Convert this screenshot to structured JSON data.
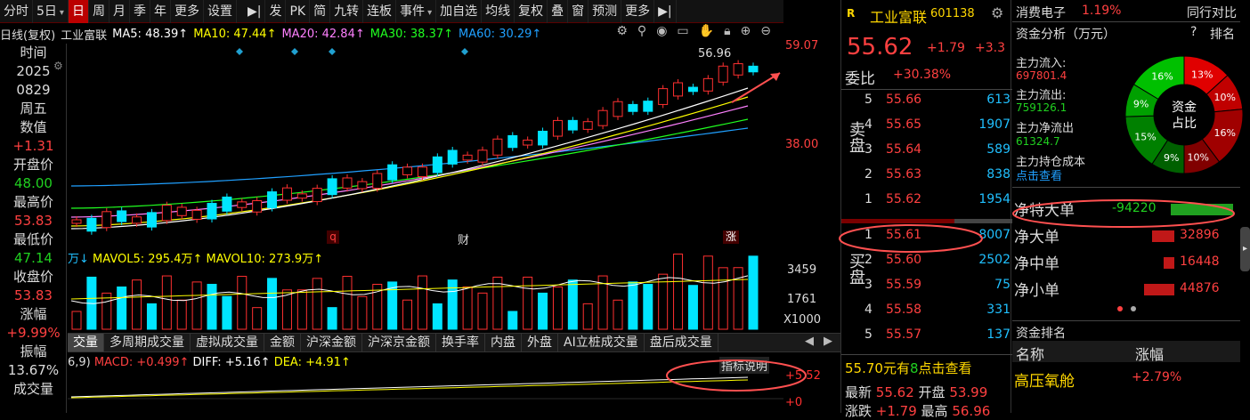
{
  "toolbar": {
    "left_items": [
      "分时",
      "5日"
    ],
    "period_items": [
      "日",
      "周",
      "月",
      "季",
      "年",
      "更多",
      "设置"
    ],
    "active": "日",
    "tool_items": [
      "发",
      "PK",
      "简",
      "九转",
      "连板",
      "事件"
    ],
    "right_items": [
      "加自选",
      "均线",
      "复权",
      "叠",
      "窗",
      "预测",
      "更多"
    ]
  },
  "chart_header": {
    "type": "日线(复权)",
    "name": "工业富联",
    "ma5": "MA5: 48.39↑",
    "ma10": "MA10: 47.44↑",
    "ma20": "MA20: 42.84↑",
    "ma30": "MA30: 38.37↑",
    "ma60": "MA60: 30.29↑"
  },
  "colors": {
    "up": "#ff3030",
    "down": "#00e5ff",
    "ma5": "#ffffff",
    "ma10": "#ffff00",
    "ma20": "#ff80ff",
    "ma30": "#20ff20",
    "ma60": "#20a0ff"
  },
  "left_info": [
    {
      "text": "时间",
      "c": "lbl"
    },
    {
      "text": "2025",
      "c": "w"
    },
    {
      "text": "0829",
      "c": "w"
    },
    {
      "text": "周五",
      "c": "w"
    },
    {
      "text": "数值",
      "c": "lbl"
    },
    {
      "text": "+1.31",
      "c": "r"
    },
    {
      "text": "开盘价",
      "c": "lbl"
    },
    {
      "text": "48.00",
      "c": "g"
    },
    {
      "text": "最高价",
      "c": "lbl"
    },
    {
      "text": "53.83",
      "c": "r"
    },
    {
      "text": "最低价",
      "c": "lbl"
    },
    {
      "text": "47.14",
      "c": "g"
    },
    {
      "text": "收盘价",
      "c": "lbl"
    },
    {
      "text": "53.83",
      "c": "r"
    },
    {
      "text": "涨幅",
      "c": "lbl"
    },
    {
      "text": "+9.99%",
      "c": "r"
    },
    {
      "text": "振幅",
      "c": "lbl"
    },
    {
      "text": "13.67%",
      "c": "w"
    },
    {
      "text": "成交量",
      "c": "lbl"
    }
  ],
  "main_axis": {
    "top": "59.07",
    "mid": "38.00",
    "high_label": "56.96"
  },
  "markers": {
    "q": "q",
    "cai": "财",
    "zhang": "涨"
  },
  "vol": {
    "header_unit": "万↓",
    "mavol5": "MAVOL5: 295.4万↑",
    "mavol10": "MAVOL10: 273.9万↑",
    "ax_top": "3459",
    "ax_mid": "1761",
    "ax_unit": "X1000"
  },
  "tabs": [
    "交量",
    "多周期成交量",
    "虚拟成交量",
    "金额",
    "沪深金额",
    "沪深京金额",
    "换手率",
    "内盘",
    "外盘",
    "AI立桩成交量",
    "盘后成交量"
  ],
  "macd": {
    "params": "6,9)",
    "macd": "MACD: +0.499↑",
    "diff": "DIFF: +5.16↑",
    "dea": "DEA: +4.91↑",
    "explain": "指标说明",
    "ax_top": "+5.52",
    "ax_zero": "+0"
  },
  "quote": {
    "code_tag": "R",
    "name": "工业富联",
    "code": "601138",
    "price": "55.62",
    "change": "+1.79",
    "pct": "+3.3",
    "wb_label": "委比",
    "wb_value": "+30.38%",
    "sell_label": "卖盘",
    "buy_label": "买盘",
    "sells": [
      {
        "lv": "5",
        "px": "55.66",
        "vol": "613"
      },
      {
        "lv": "4",
        "px": "55.65",
        "vol": "1907"
      },
      {
        "lv": "3",
        "px": "55.64",
        "vol": "589"
      },
      {
        "lv": "2",
        "px": "55.63",
        "vol": "838"
      },
      {
        "lv": "1",
        "px": "55.62",
        "vol": "1954"
      }
    ],
    "buys": [
      {
        "lv": "1",
        "px": "55.61",
        "vol": "8007"
      },
      {
        "lv": "2",
        "px": "55.60",
        "vol": "2502"
      },
      {
        "lv": "3",
        "px": "55.59",
        "vol": "75"
      },
      {
        "lv": "4",
        "px": "55.58",
        "vol": "331"
      },
      {
        "lv": "5",
        "px": "55.57",
        "vol": "137"
      }
    ],
    "promo_price": "55.70元有",
    "promo_num": "8",
    "promo_link": "点击查看",
    "latest_label": "最新",
    "latest": "55.62",
    "open_label": "开盘",
    "open": "53.99",
    "chg_label": "涨跌",
    "chg": "+1.79",
    "high_label": "最高",
    "high": "56.96"
  },
  "right": {
    "sector": "消费电子",
    "sector_pct": "1.19%",
    "compare": "同行对比",
    "flow_title": "资金分析（万元）",
    "help": "?",
    "rank": "排名",
    "main_in_label": "主力流入:",
    "main_in": "697801.4",
    "main_out_label": "主力流出:",
    "main_out": "759126.1",
    "main_net_label": "主力净流出",
    "main_net": "61324.7",
    "cost_label": "主力持仓成本",
    "cost_link": "点击查看",
    "donut_center": [
      "资金",
      "占比"
    ],
    "donut": [
      {
        "pct": "13%",
        "v": 13,
        "color": "#e00000"
      },
      {
        "pct": "10%",
        "v": 10,
        "color": "#c00000"
      },
      {
        "pct": "16%",
        "v": 16,
        "color": "#a00000"
      },
      {
        "pct": "10%",
        "v": 10,
        "color": "#800000"
      },
      {
        "pct": "9%",
        "v": 9,
        "color": "#006000"
      },
      {
        "pct": "15%",
        "v": 15,
        "color": "#008000"
      },
      {
        "pct": "9%",
        "v": 9,
        "color": "#00a000"
      },
      {
        "pct": "16%",
        "v": 16,
        "color": "#00c000"
      }
    ],
    "nets": [
      {
        "label": "净特大单",
        "value": "-94220",
        "c": "g",
        "bar": 1.0
      },
      {
        "label": "净大单",
        "value": "32896",
        "c": "r",
        "bar": 0.35
      },
      {
        "label": "净中单",
        "value": "16448",
        "c": "r",
        "bar": 0.17
      },
      {
        "label": "净小单",
        "value": "44876",
        "c": "r",
        "bar": 0.48
      }
    ],
    "rank_title": "资金排名",
    "col_name": "名称",
    "col_pct": "涨幅",
    "rank_rows": [
      {
        "name": "高压氧舱",
        "pct": "+2.79%"
      }
    ]
  }
}
